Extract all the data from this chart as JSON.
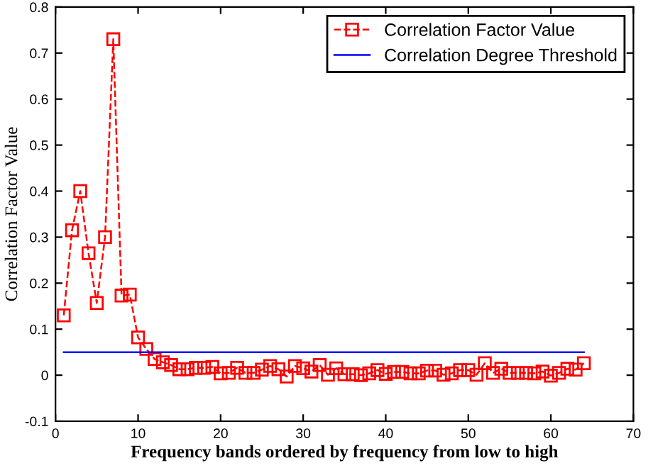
{
  "chart_data": {
    "type": "line",
    "xlabel": "Frequency bands ordered by frequency from low to high",
    "ylabel": "Correlation Factor Value",
    "xlim": [
      0,
      70
    ],
    "xticks": [
      0,
      10,
      20,
      30,
      40,
      50,
      60,
      70
    ],
    "ylim": [
      -0.1,
      0.8
    ],
    "yticks": [
      -0.1,
      0,
      0.1,
      0.2,
      0.3,
      0.4,
      0.5,
      0.6,
      0.7,
      0.8
    ],
    "grid": false,
    "legend": "top right",
    "series": [
      {
        "name": "Correlation Factor Value",
        "color": "#ff0000",
        "marker": "square",
        "line_style": "dashed",
        "x": [
          1,
          2,
          3,
          4,
          5,
          6,
          7,
          8,
          9,
          10,
          11,
          12,
          13,
          14,
          15,
          16,
          17,
          18,
          19,
          20,
          21,
          22,
          23,
          24,
          25,
          26,
          27,
          28,
          29,
          30,
          31,
          32,
          33,
          34,
          35,
          36,
          37,
          38,
          39,
          40,
          41,
          42,
          43,
          44,
          45,
          46,
          47,
          48,
          49,
          50,
          51,
          52,
          53,
          54,
          55,
          56,
          57,
          58,
          59,
          60,
          61,
          62,
          63,
          64
        ],
        "values": [
          0.13,
          0.315,
          0.4,
          0.265,
          0.157,
          0.3,
          0.73,
          0.173,
          0.175,
          0.082,
          0.057,
          0.035,
          0.028,
          0.022,
          0.013,
          0.013,
          0.016,
          0.016,
          0.018,
          0.004,
          0.005,
          0.016,
          0.005,
          0.005,
          0.012,
          0.02,
          0.013,
          -0.003,
          0.02,
          0.015,
          0.008,
          0.022,
          0.001,
          0.015,
          0.002,
          0.002,
          0.0,
          0.004,
          0.011,
          0.003,
          0.007,
          0.007,
          0.004,
          0.004,
          0.01,
          0.01,
          0.001,
          0.004,
          0.011,
          0.011,
          0.001,
          0.026,
          0.005,
          0.014,
          0.005,
          0.005,
          0.005,
          0.004,
          0.008,
          -0.001,
          0.005,
          0.014,
          0.012,
          0.026
        ]
      },
      {
        "name": "Correlation Degree Threshold",
        "color": "#0000ff",
        "marker": "none",
        "line_style": "solid",
        "x": [
          1,
          64
        ],
        "values": [
          0.05,
          0.05
        ]
      }
    ]
  }
}
